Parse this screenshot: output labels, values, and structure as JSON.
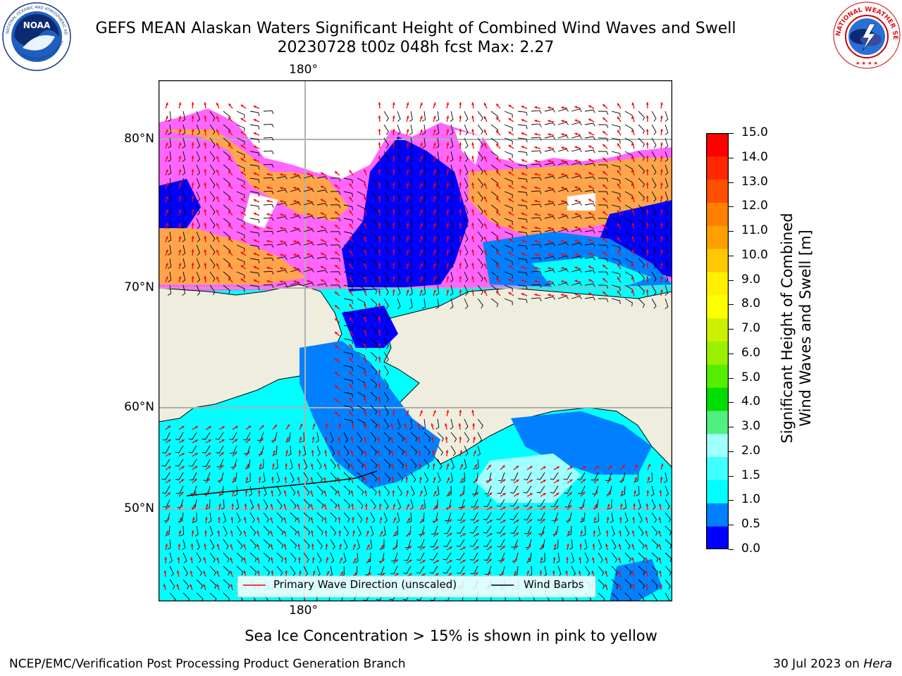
{
  "header": {
    "title_line1": "GEFS MEAN Alaskan Waters Significant Height of Combined Wind Waves and Swell",
    "title_line2": "20230728 t00z 048h fcst   Max: 2.27"
  },
  "logos": {
    "left": {
      "name": "NOAA",
      "ring_text": "NATIONAL OCEANIC AND ATMOSPHERIC ADMINISTRATION",
      "bottom_text": "U.S. DEPARTMENT OF COMMERCE",
      "center_text": "NOAA"
    },
    "right": {
      "name": "NATIONAL WEATHER SERVICE",
      "ring_text": "NATIONAL WEATHER SERVICE"
    }
  },
  "map": {
    "lon_label_top": "180°",
    "lon_label_bottom": "180°",
    "lat_labels": [
      "80°N",
      "70°N",
      "60°N",
      "50°N"
    ],
    "legend": {
      "wave_label": "Primary Wave Direction (unscaled)",
      "wind_label": "Wind Barbs",
      "wave_color": "#ff0000",
      "wind_color": "#000000"
    },
    "colors": {
      "land": "#efedde",
      "ice_pink": "#ff66ff",
      "ice_orange": "#ffa64d",
      "wave_0_0p5": "#0000ff",
      "wave_0p5_1": "#0080ff",
      "wave_1_1p5": "#00ffff",
      "wave_1p5_2": "#40ffff",
      "wave_2_3": "#a0ffff"
    }
  },
  "colorbar": {
    "label_line1": "Significant Height of Combined",
    "label_line2": "Wind Waves and Swell [m]",
    "ticks": [
      "15.0",
      "14.0",
      "13.0",
      "12.0",
      "11.0",
      "10.0",
      "9.0",
      "8.0",
      "7.0",
      "6.0",
      "5.0",
      "4.0",
      "3.0",
      "2.0",
      "1.5",
      "1.0",
      "0.5",
      "0.0"
    ],
    "colors_bottom_to_top": [
      "#0000ff",
      "#0080ff",
      "#00ffff",
      "#40ffff",
      "#a0ffff",
      "#50f080",
      "#00dd00",
      "#55ee00",
      "#99f000",
      "#ccf000",
      "#ffff00",
      "#fff000",
      "#ffc800",
      "#ffa000",
      "#ff8000",
      "#ff5000",
      "#ff2800",
      "#ff0000"
    ]
  },
  "caption": "Sea Ice Concentration > 15% is shown in pink to yellow",
  "footer": {
    "left": "NCEP/EMC/Verification Post Processing Product Generation Branch",
    "date": "30 Jul 2023 on ",
    "machine": "Hera"
  }
}
